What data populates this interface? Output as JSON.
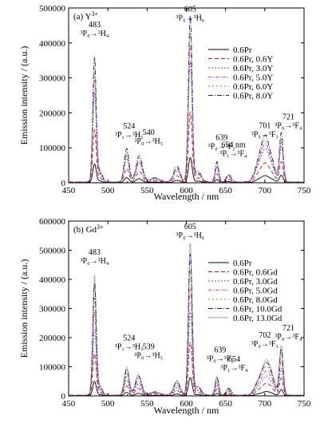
{
  "chart_data": [
    {
      "type": "line",
      "panel_label": "(a) Y",
      "panel_sup": "3+",
      "xlabel": "Wavelength / nm",
      "ylabel": "Emission intensity / (a.u.)",
      "xlim": [
        450,
        750
      ],
      "ylim": [
        0,
        500000
      ],
      "xticks": [
        450,
        500,
        550,
        600,
        650,
        700,
        750
      ],
      "yticks": [
        0,
        100000,
        200000,
        300000,
        400000,
        500000
      ],
      "legend_position": "top-right",
      "series": [
        {
          "name": "0.6Pr",
          "color": "#000000",
          "dash": "",
          "scale": 0.15
        },
        {
          "name": "0.6Pr, 0.6Y",
          "color": "#d01010",
          "dash": "5,3",
          "scale": 0.42
        },
        {
          "name": "0.6Pr, 3.0Y",
          "color": "#5050c8",
          "dash": "2,2",
          "scale": 0.72
        },
        {
          "name": "0.6Pr, 5.0Y",
          "color": "#c040c0",
          "dash": "4,2,1,2",
          "scale": 0.82
        },
        {
          "name": "0.6Pr, 6.0Y",
          "color": "#808000",
          "dash": "2,3",
          "scale": 0.9
        },
        {
          "name": "0.6Pr, 8.0Y",
          "color": "#102060",
          "dash": "6,2,1,2",
          "scale": 1.0
        }
      ],
      "peaks": [
        {
          "x": 483,
          "h": 355000,
          "w": 2.2
        },
        {
          "x": 490,
          "h": 30000,
          "w": 3
        },
        {
          "x": 524,
          "h": 95000,
          "w": 3
        },
        {
          "x": 540,
          "h": 75000,
          "w": 4
        },
        {
          "x": 560,
          "h": 12000,
          "w": 6
        },
        {
          "x": 588,
          "h": 45000,
          "w": 4
        },
        {
          "x": 605,
          "h": 475000,
          "w": 2.4
        },
        {
          "x": 615,
          "h": 30000,
          "w": 4
        },
        {
          "x": 639,
          "h": 58000,
          "w": 2.2
        },
        {
          "x": 654,
          "h": 22000,
          "w": 3
        },
        {
          "x": 692,
          "h": 50000,
          "w": 5
        },
        {
          "x": 701,
          "h": 120000,
          "w": 5
        },
        {
          "x": 710,
          "h": 40000,
          "w": 4
        },
        {
          "x": 721,
          "h": 140000,
          "w": 2.4
        }
      ],
      "annotations": [
        {
          "x": 483,
          "y": 445000,
          "lines": [
            "483",
            "³P₀→³H₄"
          ]
        },
        {
          "x": 605,
          "y": 490000,
          "lines": [
            "605",
            "³P₀→³H₆"
          ]
        },
        {
          "x": 527,
          "y": 155000,
          "lines": [
            "524",
            "³P₁→³H₅"
          ]
        },
        {
          "x": 552,
          "y": 137000,
          "lines": [
            "540",
            "³P₀→³H₅"
          ]
        },
        {
          "x": 645,
          "y": 122000,
          "lines": [
            "639",
            "³P₀→³F₂"
          ]
        },
        {
          "x": 660,
          "y": 102000,
          "lines": [
            "654 nm",
            "³P₁→³F₄"
          ]
        },
        {
          "x": 700,
          "y": 156000,
          "lines": [
            "701",
            "³P₀→³F₃"
          ]
        },
        {
          "x": 730,
          "y": 182000,
          "lines": [
            "721",
            "³P₀→³F₄"
          ]
        }
      ]
    },
    {
      "type": "line",
      "panel_label": "(b) Gd",
      "panel_sup": "3+",
      "xlabel": "Wavelength / nm",
      "ylabel": "Emission intensity / (a.u.)",
      "xlim": [
        450,
        750
      ],
      "ylim": [
        0,
        600000
      ],
      "xticks": [
        450,
        500,
        550,
        600,
        650,
        700,
        750
      ],
      "yticks": [
        0,
        100000,
        200000,
        300000,
        400000,
        500000,
        600000
      ],
      "legend_position": "top-right",
      "series": [
        {
          "name": "0.6Pr",
          "color": "#000000",
          "dash": "",
          "scale": 0.12
        },
        {
          "name": "0.6Pr, 0.6Gd",
          "color": "#d01010",
          "dash": "5,3",
          "scale": 0.35
        },
        {
          "name": "0.6Pr, 3.0Gd",
          "color": "#5050c8",
          "dash": "2,2",
          "scale": 0.55
        },
        {
          "name": "0.6Pr, 5.0Gd",
          "color": "#c040c0",
          "dash": "4,2,1,2",
          "scale": 0.7
        },
        {
          "name": "0.6Pr, 8.0Gd",
          "color": "#808000",
          "dash": "2,3",
          "scale": 0.82
        },
        {
          "name": "0.6Pr, 10.0Gd",
          "color": "#102060",
          "dash": "6,2,1,2",
          "scale": 0.93
        },
        {
          "name": "0.6Pr, 13.0Gd",
          "color": "#505050",
          "dash": "1,1",
          "scale": 1.0
        }
      ],
      "peaks": [
        {
          "x": 483,
          "h": 410000,
          "w": 2.2
        },
        {
          "x": 490,
          "h": 30000,
          "w": 3
        },
        {
          "x": 524,
          "h": 95000,
          "w": 3
        },
        {
          "x": 539,
          "h": 70000,
          "w": 4
        },
        {
          "x": 560,
          "h": 12000,
          "w": 6
        },
        {
          "x": 588,
          "h": 50000,
          "w": 4
        },
        {
          "x": 605,
          "h": 520000,
          "w": 2.4
        },
        {
          "x": 615,
          "h": 30000,
          "w": 4
        },
        {
          "x": 639,
          "h": 65000,
          "w": 2.2
        },
        {
          "x": 654,
          "h": 25000,
          "w": 3
        },
        {
          "x": 692,
          "h": 45000,
          "w": 5
        },
        {
          "x": 702,
          "h": 110000,
          "w": 5
        },
        {
          "x": 710,
          "h": 40000,
          "w": 4
        },
        {
          "x": 721,
          "h": 170000,
          "w": 2.4
        }
      ],
      "annotations": [
        {
          "x": 483,
          "y": 485000,
          "lines": [
            "483",
            "³P₀→³H₄"
          ]
        },
        {
          "x": 605,
          "y": 572000,
          "lines": [
            "605",
            "³P₀→³H₆"
          ]
        },
        {
          "x": 527,
          "y": 190000,
          "lines": [
            "524",
            "³P₁→³H₅"
          ]
        },
        {
          "x": 552,
          "y": 160000,
          "lines": [
            "539",
            "³P₀→³H₅"
          ]
        },
        {
          "x": 643,
          "y": 150000,
          "lines": [
            "639",
            "³P₀→³F₂"
          ]
        },
        {
          "x": 661,
          "y": 118000,
          "lines": [
            "654",
            "³P₁→³F₄"
          ]
        },
        {
          "x": 700,
          "y": 200000,
          "lines": [
            "702",
            "³P₀→³F₃"
          ]
        },
        {
          "x": 730,
          "y": 225000,
          "lines": [
            "721",
            "³P₀→³F₄"
          ]
        }
      ]
    }
  ]
}
